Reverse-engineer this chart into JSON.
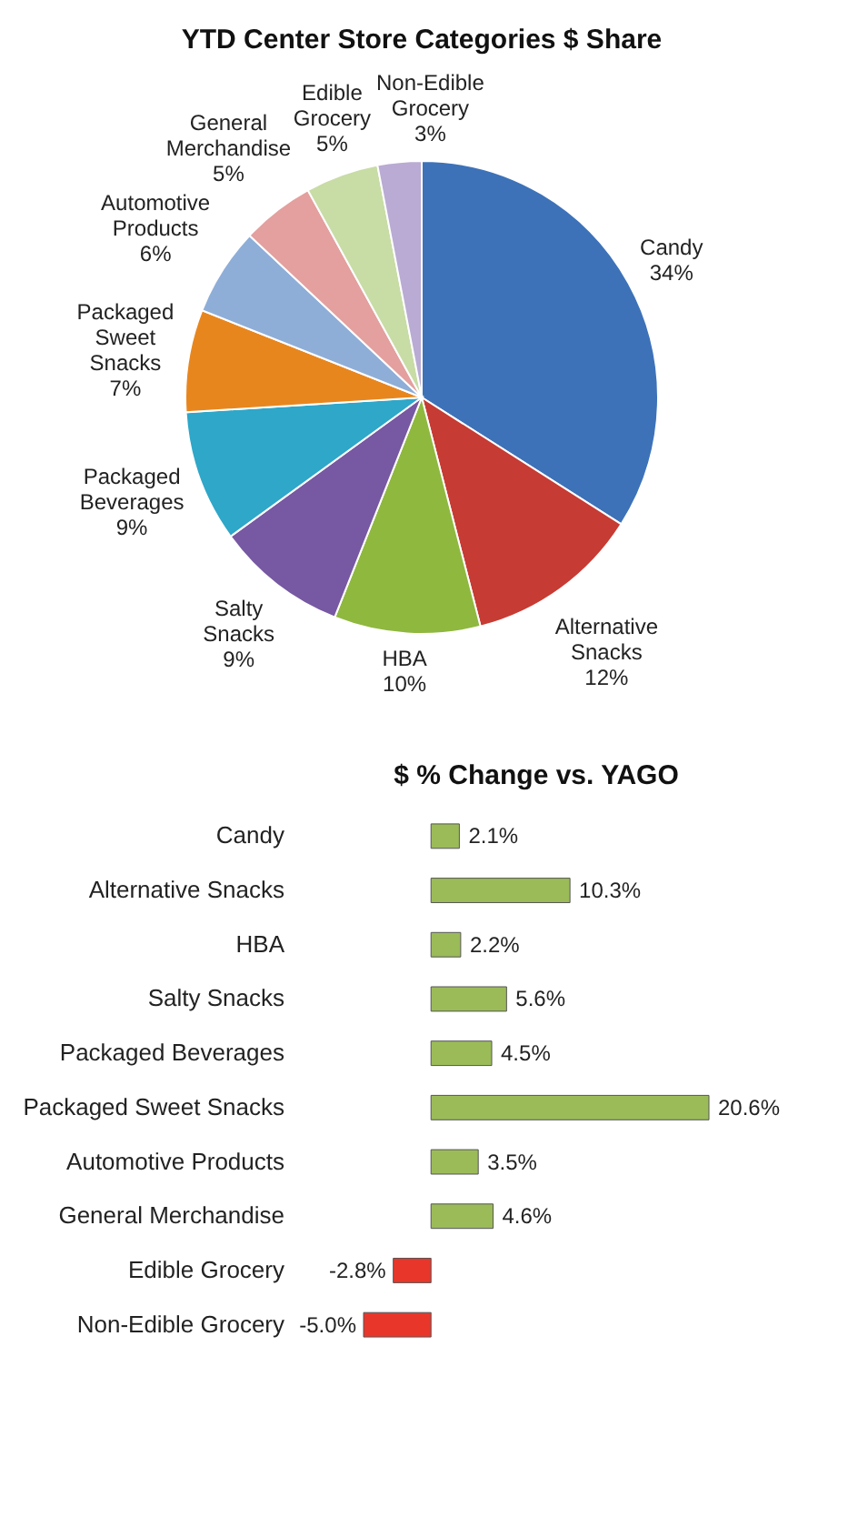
{
  "chart_data": [
    {
      "type": "pie",
      "title": "YTD Center Store Categories $ Share",
      "categories": [
        "Candy",
        "Alternative Snacks",
        "HBA",
        "Salty Snacks",
        "Packaged Beverages",
        "Packaged Sweet Snacks",
        "Automotive Products",
        "General Merchandise",
        "Edible Grocery",
        "Non-Edible Grocery"
      ],
      "values": [
        34,
        12,
        10,
        9,
        9,
        7,
        6,
        5,
        5,
        3
      ],
      "value_labels": [
        "34%",
        "12%",
        "10%",
        "9%",
        "9%",
        "7%",
        "6%",
        "5%",
        "5%",
        "3%"
      ],
      "colors": [
        "#3d72b8",
        "#c63b33",
        "#8fb83f",
        "#7758a2",
        "#2ea7c9",
        "#e8861e",
        "#8eaed8",
        "#e3a09e",
        "#c8dca6",
        "#b9abd3"
      ]
    },
    {
      "type": "bar",
      "orientation": "horizontal",
      "title": "$ % Change vs. YAGO",
      "categories": [
        "Candy",
        "Alternative Snacks",
        "HBA",
        "Salty Snacks",
        "Packaged Beverages",
        "Packaged Sweet Snacks",
        "Automotive Products",
        "General Merchandise",
        "Edible Grocery",
        "Non-Edible Grocery"
      ],
      "values": [
        2.1,
        10.3,
        2.2,
        5.6,
        4.5,
        20.6,
        3.5,
        4.6,
        -2.8,
        -5.0
      ],
      "value_labels": [
        "2.1%",
        "10.3%",
        "2.2%",
        "5.6%",
        "4.5%",
        "20.6%",
        "3.5%",
        "4.6%",
        "-2.8%",
        "-5.0%"
      ],
      "colors": [
        "#9bbb59",
        "#9bbb59",
        "#9bbb59",
        "#9bbb59",
        "#9bbb59",
        "#9bbb59",
        "#9bbb59",
        "#9bbb59",
        "#e8372a",
        "#e8372a"
      ]
    }
  ]
}
